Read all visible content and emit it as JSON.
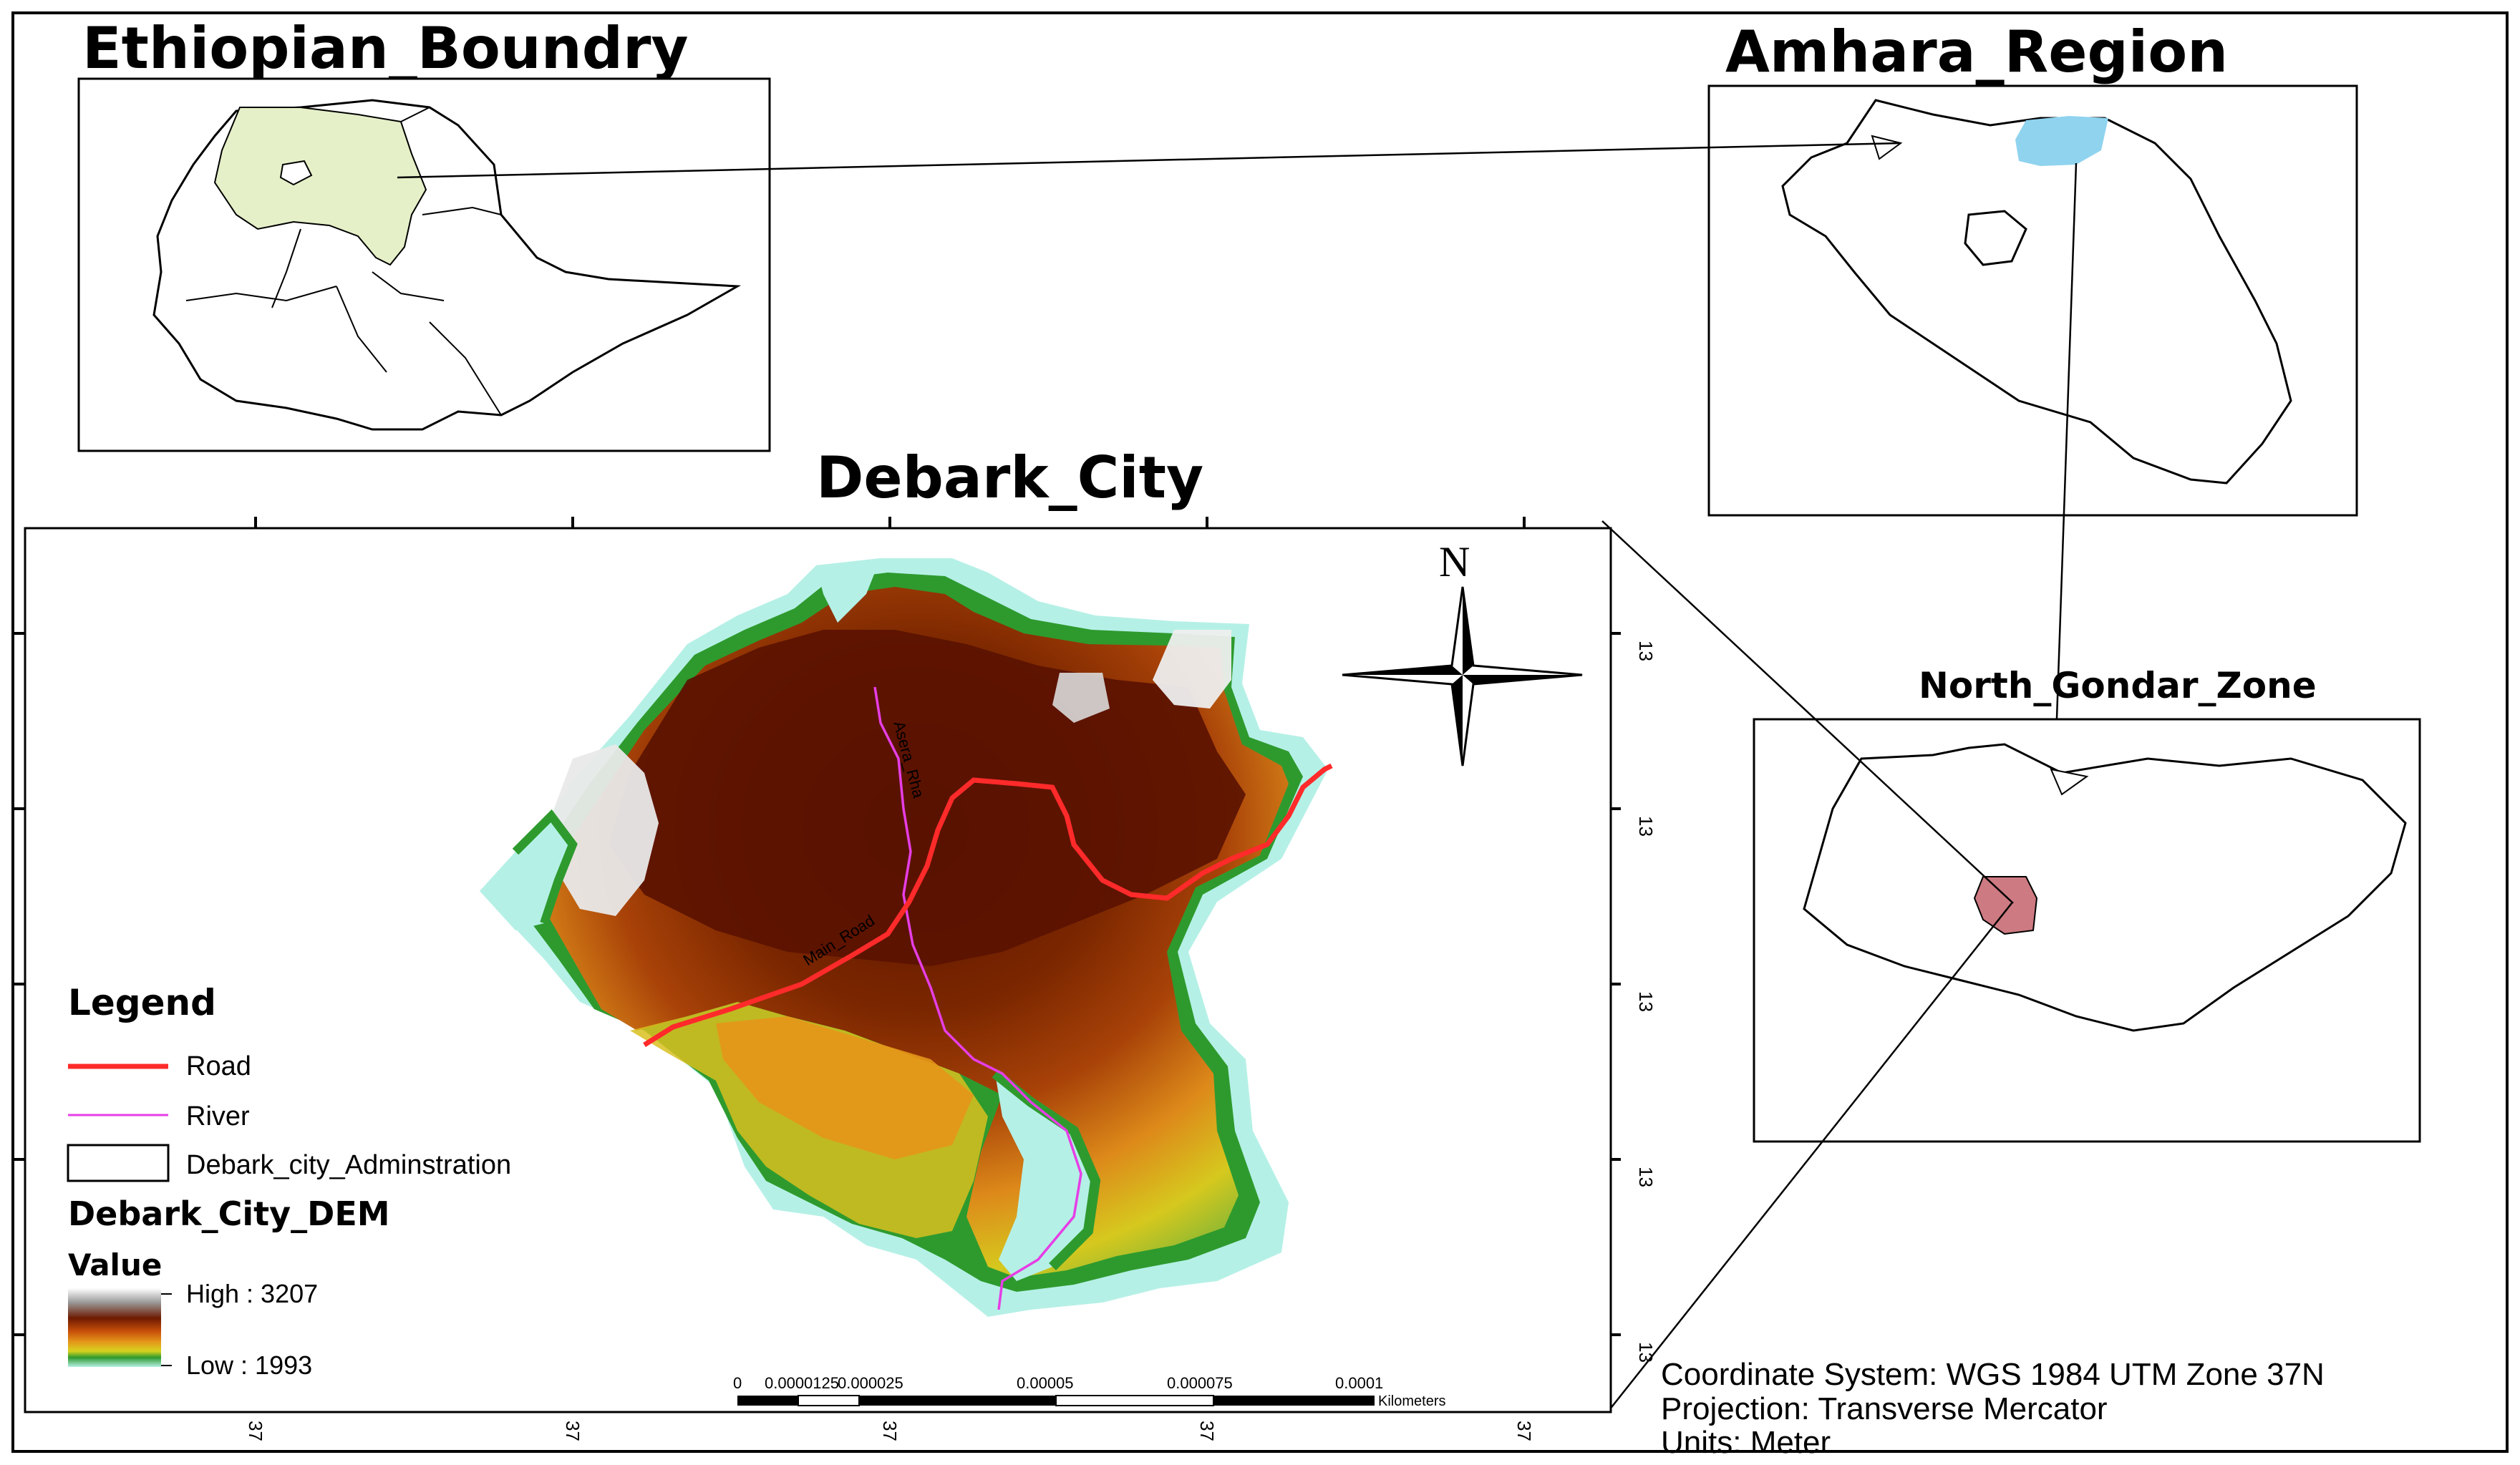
{
  "titles": {
    "ethiopia": "Ethiopian_Boundry",
    "amhara": "Amhara_Region",
    "north_gondar": "North_Gondar_Zone",
    "debark": "Debark_City"
  },
  "legend": {
    "heading": "Legend",
    "items": [
      {
        "label": "Road",
        "color": "#ff2a2a"
      },
      {
        "label": "River",
        "color": "#e63ee6"
      },
      {
        "label": "Debark_city_Adminstration",
        "color": "#000000"
      }
    ],
    "dem_heading": "Debark_City_DEM",
    "value_heading": "Value",
    "high": "High : 3207",
    "low": "Low : 1993"
  },
  "map_labels": {
    "road_1": "Main_Road",
    "road_2": "Asera_Rha"
  },
  "north_arrow": "N",
  "scale_bar": {
    "ticks": [
      "0",
      "0.0000125",
      "0.000025",
      "0.00005",
      "0.000075",
      "0.0001"
    ],
    "units": "Kilometers"
  },
  "graticule": {
    "left_ticks": [
      "13",
      "13",
      "13",
      "13",
      "13"
    ],
    "bottom_ticks": [
      "37",
      "37",
      "37",
      "37",
      "37"
    ]
  },
  "footer": {
    "coordinate_system": "Coordinate System: WGS 1984 UTM Zone 37N",
    "projection": "Projection: Transverse Mercator",
    "units": "Units: Meter"
  },
  "colors": {
    "ethiopia_amhara_fill": "#e5f0c8",
    "amhara_highlight": "#8fd3ef",
    "debark_fill": "#cd7a82",
    "dem_high": "#f2f2f2",
    "dem_brown": "#6e1a00",
    "dem_orange": "#e5961a",
    "dem_yellow": "#d8d21e",
    "dem_green": "#2e9a2e",
    "dem_low": "#b5f0e6"
  }
}
